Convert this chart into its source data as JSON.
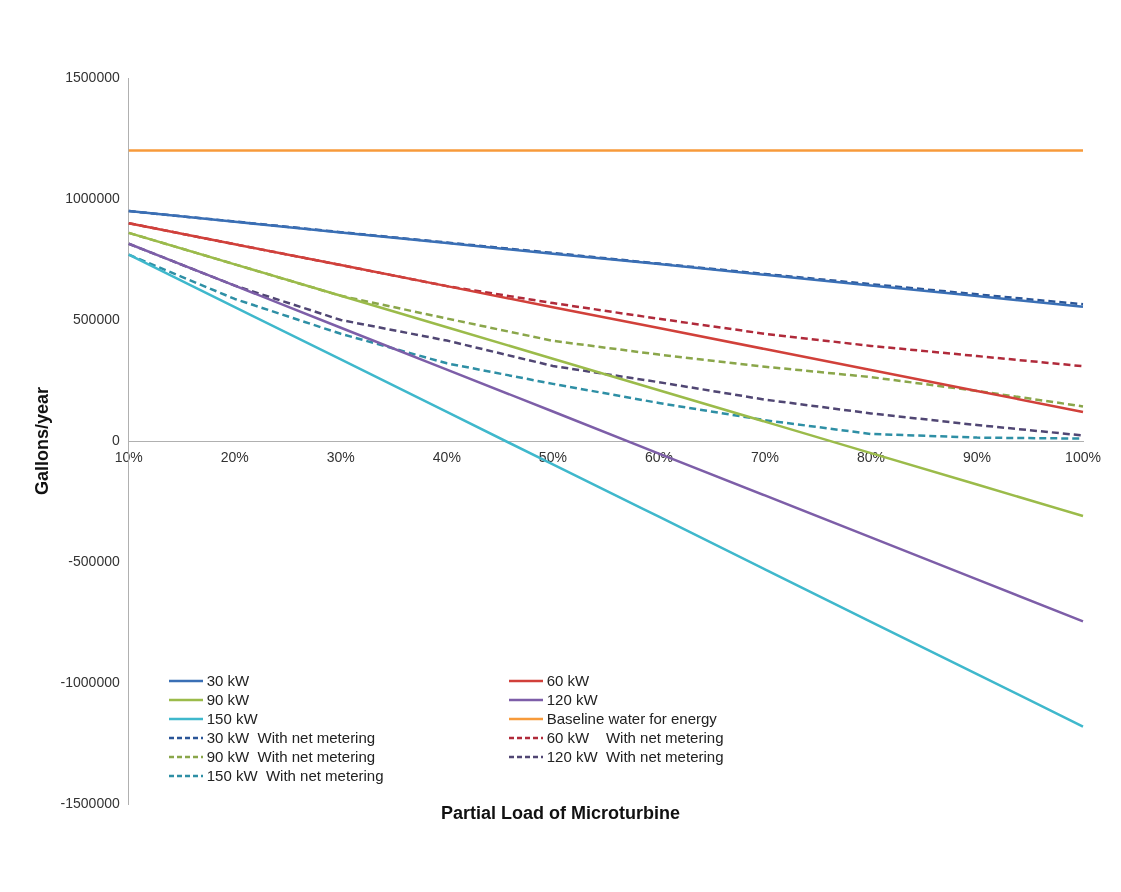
{
  "chart_data": {
    "type": "line",
    "xlabel": "Partial Load of Microturbine",
    "ylabel": "Gallons/year",
    "categories": [
      "10%",
      "20%",
      "30%",
      "40%",
      "50%",
      "60%",
      "70%",
      "80%",
      "90%",
      "100%"
    ],
    "ylim": [
      -1500000,
      1500000
    ],
    "yticks": [
      -1500000,
      -1000000,
      -500000,
      0,
      500000,
      1000000,
      1500000
    ],
    "grid": false,
    "legend": "bottom left",
    "marker": "none",
    "series": [
      {
        "name": "30 kW",
        "color": "#3a6fb5",
        "line_style": "solid",
        "values": [
          950000,
          906000,
          862000,
          818000,
          774000,
          731000,
          687000,
          643000,
          599000,
          555000
        ]
      },
      {
        "name": "60 kW",
        "color": "#d1403a",
        "line_style": "solid",
        "values": [
          900000,
          813000,
          727000,
          640000,
          553000,
          467000,
          380000,
          293000,
          207000,
          120000
        ]
      },
      {
        "name": "90 kW",
        "color": "#9bbb4a",
        "line_style": "solid",
        "values": [
          860000,
          730000,
          600000,
          470000,
          340000,
          210000,
          80000,
          -50000,
          -180000,
          -310000
        ]
      },
      {
        "name": "120 kW",
        "color": "#7d5ea8",
        "line_style": "solid",
        "values": [
          815000,
          642000,
          468000,
          295000,
          122000,
          -52000,
          -225000,
          -398000,
          -572000,
          -745000
        ]
      },
      {
        "name": "150 kW",
        "color": "#3fb8cc",
        "line_style": "solid",
        "values": [
          770000,
          553000,
          337000,
          120000,
          -97000,
          -313000,
          -530000,
          -747000,
          -963000,
          -1180000
        ]
      },
      {
        "name": "Baseline water for energy",
        "color": "#f79a3a",
        "line_style": "solid",
        "values": [
          1200000,
          1200000,
          1200000,
          1200000,
          1200000,
          1200000,
          1200000,
          1200000,
          1200000,
          1200000
        ]
      },
      {
        "name": "30 kW  With net metering",
        "color": "#2a5597",
        "line_style": "dashed",
        "values": [
          950000,
          907000,
          863000,
          820000,
          777000,
          733000,
          690000,
          648000,
          606000,
          565000
        ]
      },
      {
        "name": "60 kW    With net metering",
        "color": "#b02a3a",
        "line_style": "dashed",
        "values": [
          900000,
          813000,
          727000,
          640000,
          570000,
          505000,
          443000,
          393000,
          351000,
          309000
        ]
      },
      {
        "name": "90 kW  With net metering",
        "color": "#8aa64a",
        "line_style": "dashed",
        "values": [
          860000,
          730000,
          600000,
          506000,
          414000,
          357000,
          307000,
          264000,
          207000,
          143000
        ]
      },
      {
        "name": "120 kW  With net metering",
        "color": "#504673",
        "line_style": "dashed",
        "values": [
          815000,
          642000,
          500000,
          415000,
          310000,
          243000,
          171000,
          114000,
          66000,
          23000
        ]
      },
      {
        "name": "150 kW  With net metering",
        "color": "#2e8fa5",
        "line_style": "dashed",
        "values": [
          770000,
          587000,
          443000,
          321000,
          236000,
          157000,
          86000,
          29000,
          14000,
          10000
        ]
      }
    ]
  }
}
